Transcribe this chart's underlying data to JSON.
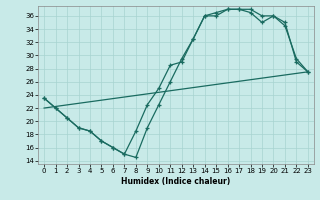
{
  "background_color": "#c8eae8",
  "grid_color": "#a8d4d0",
  "line_color": "#1a6b60",
  "xlabel": "Humidex (Indice chaleur)",
  "xlim": [
    -0.5,
    23.5
  ],
  "ylim": [
    13.5,
    37.5
  ],
  "xticks": [
    0,
    1,
    2,
    3,
    4,
    5,
    6,
    7,
    8,
    9,
    10,
    11,
    12,
    13,
    14,
    15,
    16,
    17,
    18,
    19,
    20,
    21,
    22,
    23
  ],
  "yticks": [
    14,
    16,
    18,
    20,
    22,
    24,
    26,
    28,
    30,
    32,
    34,
    36
  ],
  "series": [
    {
      "x": [
        0,
        1,
        2,
        3,
        4,
        5,
        6,
        7,
        8,
        9,
        10,
        11,
        12,
        13,
        14,
        15,
        16,
        17,
        18,
        19,
        20,
        21,
        22,
        23
      ],
      "y": [
        23.5,
        22,
        20.5,
        19,
        18.5,
        17,
        16,
        15,
        14.5,
        19,
        22.5,
        26,
        29.5,
        32.5,
        36,
        36,
        37,
        37,
        37,
        36,
        36,
        34.5,
        29.5,
        27.5
      ],
      "marker": true
    },
    {
      "x": [
        0,
        1,
        2,
        3,
        4,
        5,
        6,
        7,
        8,
        9,
        10,
        11,
        12,
        13,
        14,
        15,
        16,
        17,
        18,
        19,
        20,
        21,
        22,
        23
      ],
      "y": [
        23.5,
        22,
        20.5,
        19,
        18.5,
        17,
        16,
        15,
        18.5,
        22.5,
        25,
        28.5,
        29,
        32.5,
        36,
        36.5,
        37,
        37,
        36.5,
        35,
        36,
        35,
        29,
        27.5
      ],
      "marker": true
    },
    {
      "x": [
        0,
        23
      ],
      "y": [
        22,
        27.5
      ],
      "marker": false
    }
  ]
}
